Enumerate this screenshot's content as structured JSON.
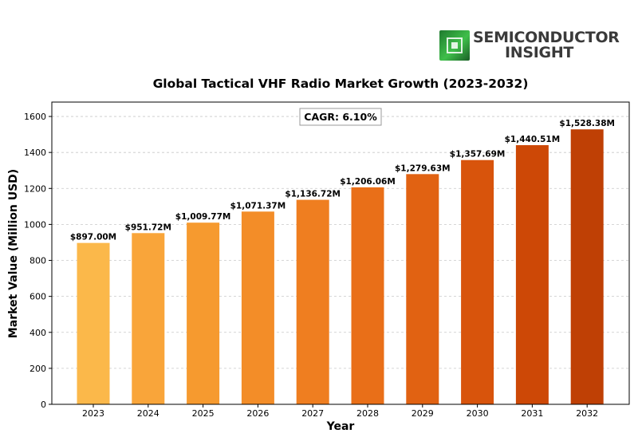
{
  "logo": {
    "line1": "SEMICONDUCTOR",
    "line2": "INSIGHT",
    "mark_color": "#2ea83a"
  },
  "chart_data": {
    "type": "bar",
    "title": "Global Tactical VHF Radio Market Growth (2023-2032)",
    "xlabel": "Year",
    "ylabel": "Market Value (Million USD)",
    "categories": [
      "2023",
      "2024",
      "2025",
      "2026",
      "2027",
      "2028",
      "2029",
      "2030",
      "2031",
      "2032"
    ],
    "values": [
      897.0,
      951.72,
      1009.77,
      1071.37,
      1136.72,
      1206.06,
      1279.63,
      1357.69,
      1440.51,
      1528.38
    ],
    "data_labels": [
      "$897.00M",
      "$951.72M",
      "$1,009.77M",
      "$1,071.37M",
      "$1,136.72M",
      "$1,206.06M",
      "$1,279.63M",
      "$1,357.69M",
      "$1,440.51M",
      "$1,528.38M"
    ],
    "ylim": [
      0,
      1680
    ],
    "yticks": [
      0,
      200,
      400,
      600,
      800,
      1000,
      1200,
      1400,
      1600
    ],
    "grid": "horizontal dashed",
    "annotation": "CAGR: 6.10%",
    "colors": [
      "#fbb84a",
      "#f9a53a",
      "#f69a2f",
      "#f38d28",
      "#ef7e20",
      "#e96f18",
      "#e16212",
      "#d8540c",
      "#cd4806",
      "#bf4005"
    ]
  }
}
